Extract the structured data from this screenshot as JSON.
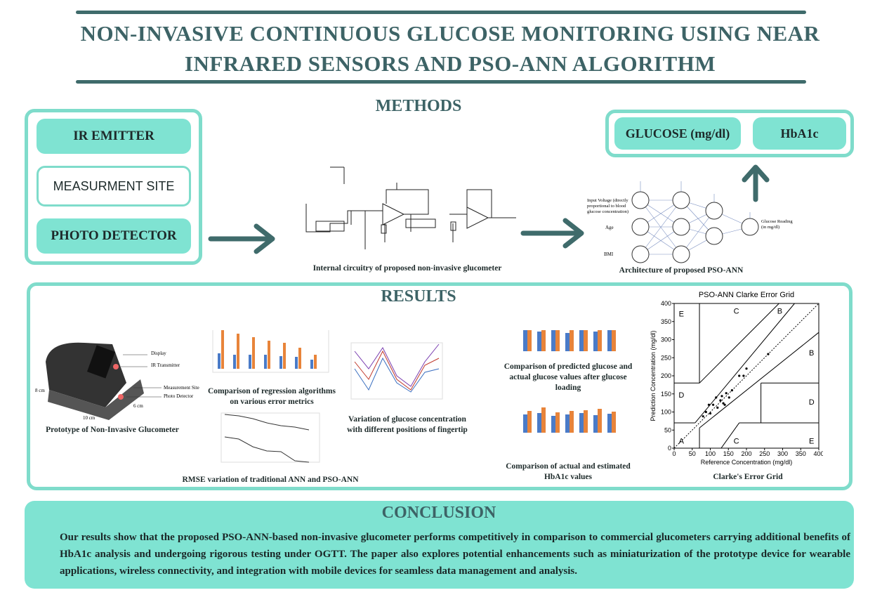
{
  "header": {
    "title": "NON-INVASIVE CONTINUOUS GLUCOSE MONITORING USING NEAR INFRARED SENSORS AND PSO-ANN ALGORITHM"
  },
  "methods": {
    "heading": "METHODS",
    "inputs": [
      "IR EMITTER",
      "MEASURMENT SITE",
      "PHOTO DETECTOR"
    ],
    "circuit_caption": "Internal circuitry of proposed non-invasive glucometer",
    "ann_inputs": [
      "Input Voltage (directly proportional to blood glucose concentration)",
      "Age",
      "BMI"
    ],
    "ann_output": "Glucose Reading (in mg/dl)",
    "ann_caption": "Architecture of proposed PSO-ANN",
    "outputs": [
      "GLUCOSE (mg/dl)",
      "HbA1c"
    ]
  },
  "results": {
    "heading": "RESULTS",
    "prototype": {
      "labels": [
        "Display",
        "IR Transmitter",
        "Measurement Site",
        "Photo Detector"
      ],
      "dimensions": [
        "8 cm",
        "10 cm",
        "6 cm"
      ],
      "caption": "Prototype of Non-Invasive Glucometer"
    },
    "captions": [
      "Comparison of regression algorithms on various error metrics",
      "RMSE variation of traditional ANN and PSO-ANN",
      "Variation of glucose concentration with different positions of fingertip",
      "Comparison of predicted glucose and actual glucose values after glucose loading",
      "Comparison of actual and estimated HbA1c values"
    ],
    "clarke": {
      "title": "PSO-ANN Clarke Error Grid",
      "x_label": "Reference Concentration (mg/dl)",
      "y_label": "Prediction Concentration (mg/dl)",
      "ticks": [
        0,
        50,
        100,
        150,
        200,
        250,
        300,
        350,
        400
      ],
      "zones": [
        "E",
        "C",
        "B",
        "B",
        "D",
        "D",
        "A",
        "C",
        "E"
      ],
      "caption": "Clarke's Error Grid"
    }
  },
  "conclusion": {
    "heading": "CONCLUSION",
    "text": "Our results show that the proposed PSO-ANN-based non-invasive glucometer performs competitively in comparison to commercial glucometers carrying additional benefits of HbA1c analysis and undergoing rigorous testing under OGTT. The paper also explores potential enhancements such as miniaturization of the prototype device for wearable applications, wireless connectivity, and integration with mobile devices for seamless data management and analysis."
  }
}
